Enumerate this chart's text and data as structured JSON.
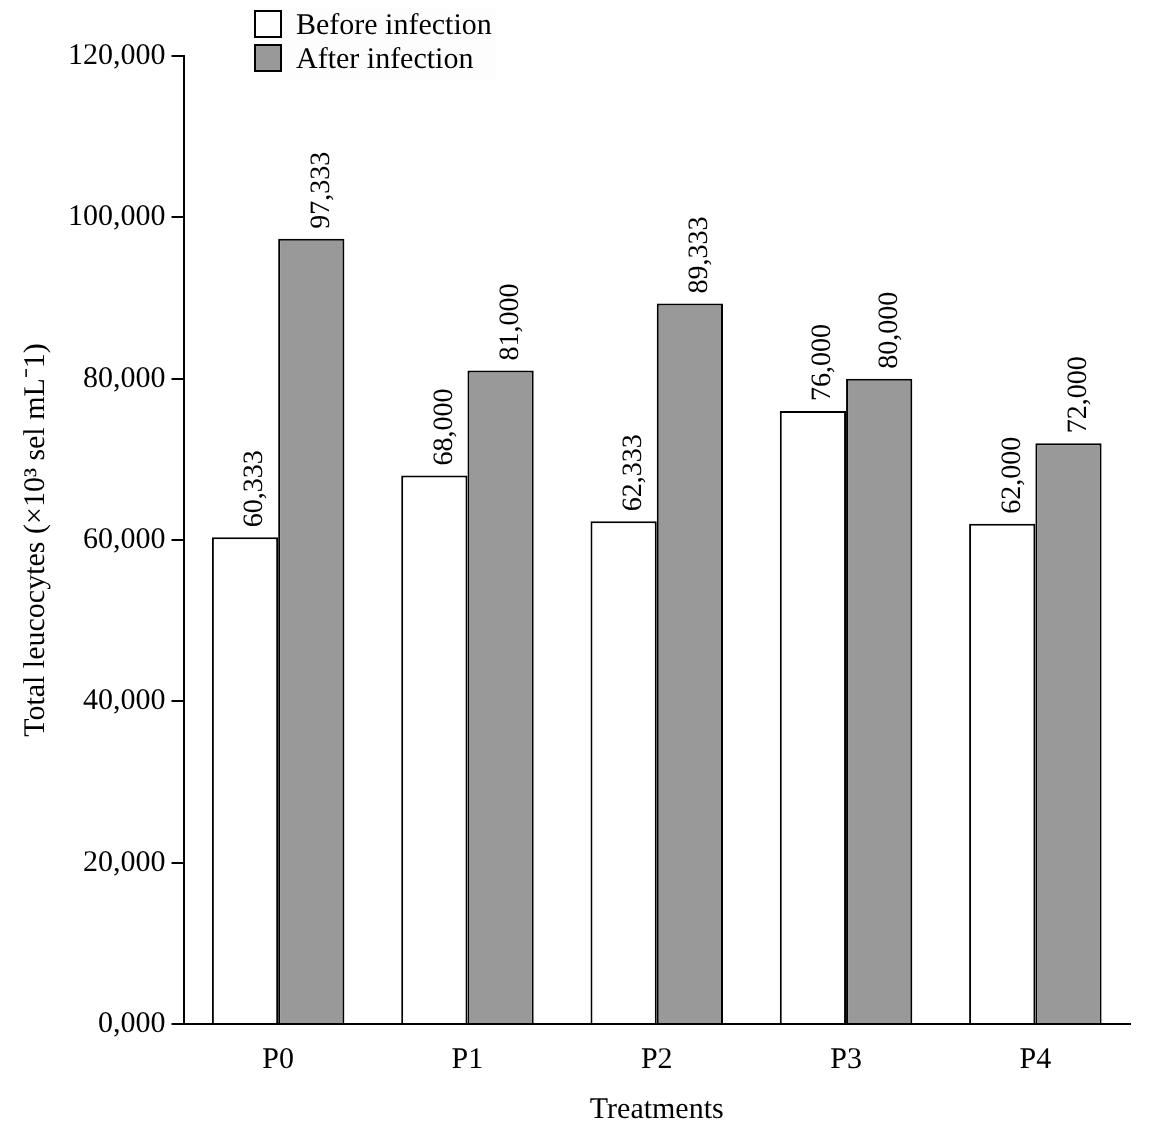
{
  "chart_data": {
    "type": "bar",
    "xlabel": "Treatments",
    "ylabel": "Total leucocytes (×10³ sel mL⁻1)",
    "categories": [
      "P0",
      "P1",
      "P2",
      "P3",
      "P4"
    ],
    "series": [
      {
        "name": "Before infection",
        "color": "#ffffff",
        "values": [
          60333,
          68000,
          62333,
          76000,
          62000
        ],
        "value_labels": [
          "60,333",
          "68,000",
          "62,333",
          "76,000",
          "62,000"
        ]
      },
      {
        "name": "After infection",
        "color": "#999999",
        "values": [
          97333,
          81000,
          89333,
          80000,
          72000
        ],
        "value_labels": [
          "97,333",
          "81,000",
          "89,333",
          "80,000",
          "72,000"
        ]
      }
    ],
    "ylim": [
      0,
      120000
    ],
    "yticks": [
      {
        "value": 0,
        "label": "0,000"
      },
      {
        "value": 20000,
        "label": "20,000"
      },
      {
        "value": 40000,
        "label": "40,000"
      },
      {
        "value": 60000,
        "label": "60,000"
      },
      {
        "value": 80000,
        "label": "80,000"
      },
      {
        "value": 100000,
        "label": "100,000"
      },
      {
        "value": 120000,
        "label": "120,000"
      }
    ],
    "grid": false,
    "legend": "top left"
  }
}
